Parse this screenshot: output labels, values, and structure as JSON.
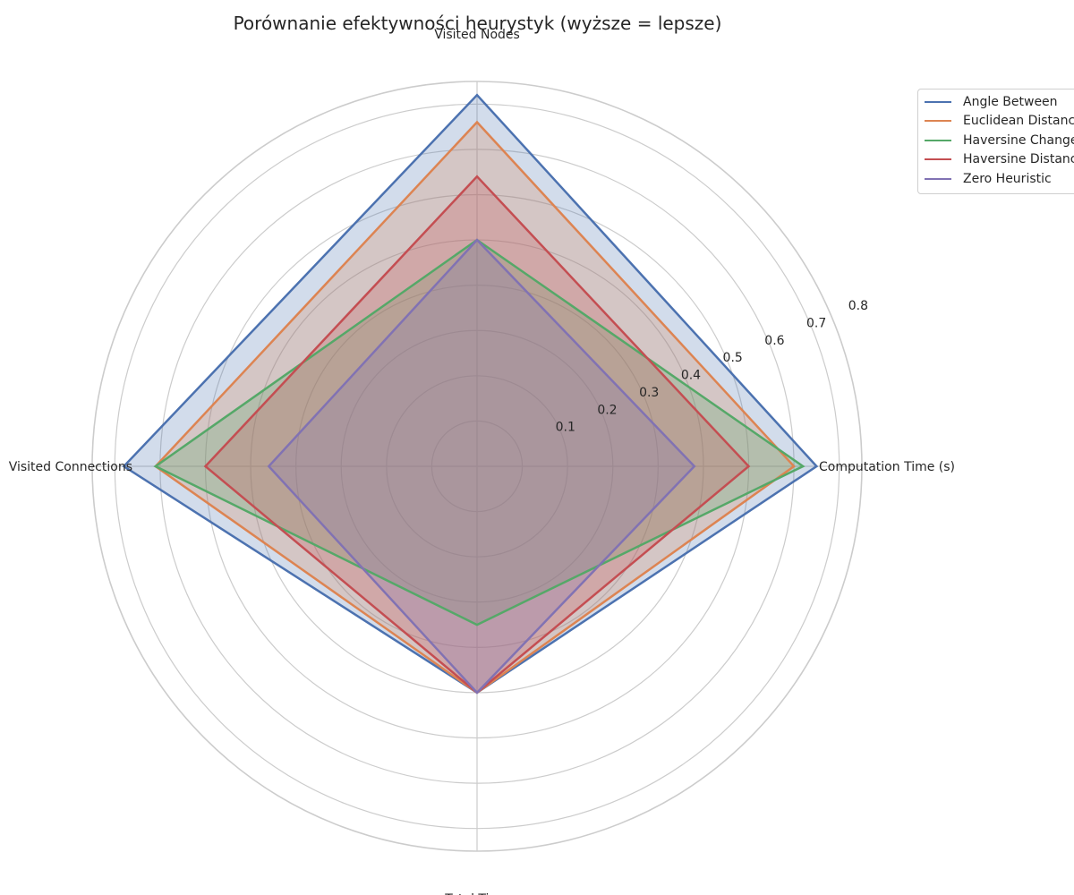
{
  "chart_data": {
    "type": "radar",
    "title": "Porównanie efektywności heurystyk (wyższe = lepsze)",
    "axes": [
      "Visited Nodes",
      "Computation Time (s)",
      "Total Time",
      "Visited Connections"
    ],
    "rlim": [
      0.0,
      0.85
    ],
    "rticks": [
      "0.1",
      "0.2",
      "0.3",
      "0.4",
      "0.5",
      "0.6",
      "0.7",
      "0.8"
    ],
    "rtick_values": [
      0.1,
      0.2,
      0.3,
      0.4,
      0.5,
      0.6,
      0.7,
      0.8
    ],
    "grid": true,
    "legend_position": "top-right, outside plot",
    "series": [
      {
        "name": "Angle Between",
        "color": "#4c72b0",
        "values": [
          0.82,
          0.75,
          0.5,
          0.78
        ]
      },
      {
        "name": "Euclidean Distance",
        "color": "#dd8452",
        "values": [
          0.76,
          0.7,
          0.5,
          0.71
        ]
      },
      {
        "name": "Haversine Change",
        "color": "#55a868",
        "values": [
          0.5,
          0.72,
          0.35,
          0.71
        ]
      },
      {
        "name": "Haversine Distance",
        "color": "#c44e52",
        "values": [
          0.64,
          0.6,
          0.5,
          0.6
        ]
      },
      {
        "name": "Zero Heuristic",
        "color": "#8172b3",
        "values": [
          0.5,
          0.48,
          0.5,
          0.46
        ]
      }
    ]
  }
}
